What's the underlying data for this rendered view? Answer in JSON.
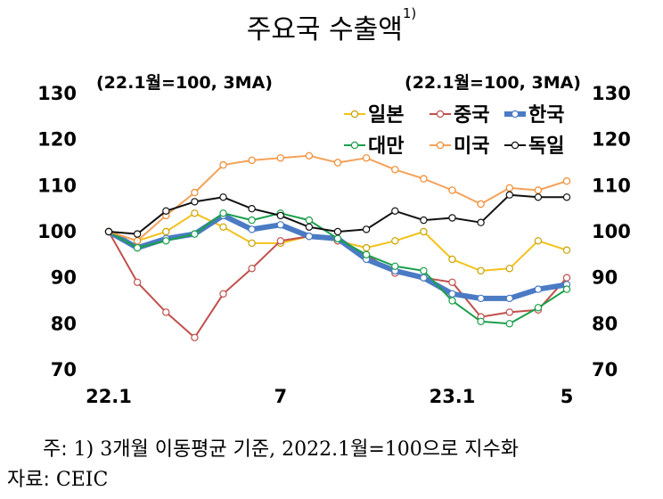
{
  "title": "주요국 수출액",
  "title_footnote": "1)",
  "note": {
    "prefix": "주:",
    "text": "1) 3개월 이동평균 기준, 2022.1월=100으로 지수화"
  },
  "source": {
    "prefix": "자료:",
    "text": "CEIC"
  },
  "chart_data": {
    "type": "line",
    "title": "주요국 수출액",
    "left_axis_label": "(22.1월=100, 3MA)",
    "right_axis_label": "(22.1월=100, 3MA)",
    "ylim": [
      70,
      130
    ],
    "yticks": [
      70,
      80,
      90,
      100,
      110,
      120,
      130
    ],
    "x": [
      "22.1",
      "22.2",
      "22.3",
      "22.4",
      "22.5",
      "22.6",
      "22.7",
      "22.8",
      "22.9",
      "22.10",
      "22.11",
      "22.12",
      "23.1",
      "23.2",
      "23.3",
      "23.4",
      "23.5"
    ],
    "xtick_labels": [
      {
        "index": 0,
        "label": "22.1"
      },
      {
        "index": 6,
        "label": "7"
      },
      {
        "index": 12,
        "label": "23.1"
      },
      {
        "index": 16,
        "label": "5"
      }
    ],
    "grid": "horizontal",
    "legend_position": "top-right",
    "series": [
      {
        "name": "일본",
        "color": "#f2c21a",
        "marker_edge": "#c9a200",
        "width": 2,
        "values": [
          100,
          98,
          100,
          104,
          101,
          97.5,
          97.5,
          99,
          98,
          96.5,
          98,
          100,
          94,
          91.5,
          92,
          98,
          96
        ]
      },
      {
        "name": "중국",
        "color": "#c0504d",
        "marker_edge": "#c0504d",
        "width": 2,
        "values": [
          100,
          89,
          82.5,
          77,
          86.5,
          92,
          98,
          99,
          98,
          95,
          91,
          90,
          89,
          81.5,
          82.5,
          83,
          90
        ]
      },
      {
        "name": "한국",
        "color": "#4a7bc4",
        "marker_edge": "#4a7bc4",
        "width": 6,
        "values": [
          100,
          96.5,
          98.5,
          99.5,
          103.5,
          100.5,
          101.5,
          99,
          98.5,
          94,
          91.5,
          90,
          86.5,
          85.5,
          85.5,
          87.5,
          88.5
        ]
      },
      {
        "name": "대만",
        "color": "#1aa04a",
        "marker_edge": "#1aa04a",
        "width": 2,
        "values": [
          100,
          96.5,
          98,
          99.5,
          104,
          102.5,
          104,
          102.5,
          98.5,
          95,
          92.5,
          91.5,
          85,
          80.5,
          80,
          83.5,
          87.5
        ]
      },
      {
        "name": "미국",
        "color": "#f5a25a",
        "marker_edge": "#f08a30",
        "width": 2,
        "values": [
          100,
          98,
          103.5,
          108.5,
          114.5,
          115.5,
          116,
          116.5,
          115,
          116,
          113.5,
          111.5,
          109,
          106,
          109.5,
          109,
          111
        ]
      },
      {
        "name": "독일",
        "color": "#111111",
        "marker_edge": "#111111",
        "width": 2,
        "values": [
          100,
          99.5,
          104.5,
          106.5,
          107.5,
          105,
          103.5,
          101,
          100,
          100.5,
          104.5,
          102.5,
          103,
          102,
          108,
          107.5,
          107.5
        ]
      }
    ]
  }
}
